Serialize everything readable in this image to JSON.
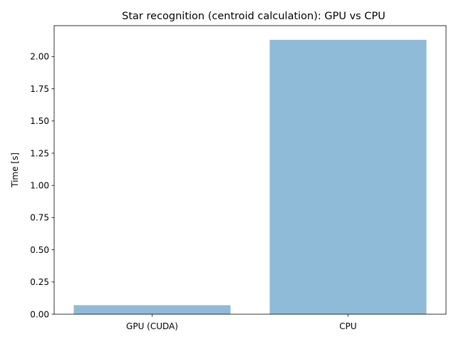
{
  "chart_data": {
    "type": "bar",
    "title": "Star recognition (centroid calculation): GPU vs CPU",
    "xlabel": "",
    "ylabel": "Time [s]",
    "categories": [
      "GPU (CUDA)",
      "CPU"
    ],
    "values": [
      0.07,
      2.13
    ],
    "ylim": [
      0,
      2.24
    ],
    "yticks": [
      "0.00",
      "0.25",
      "0.50",
      "0.75",
      "1.00",
      "1.25",
      "1.50",
      "1.75",
      "2.00"
    ],
    "bar_color": "#1f77b4",
    "bar_alpha": 0.5,
    "grid": false,
    "legend": "none"
  }
}
